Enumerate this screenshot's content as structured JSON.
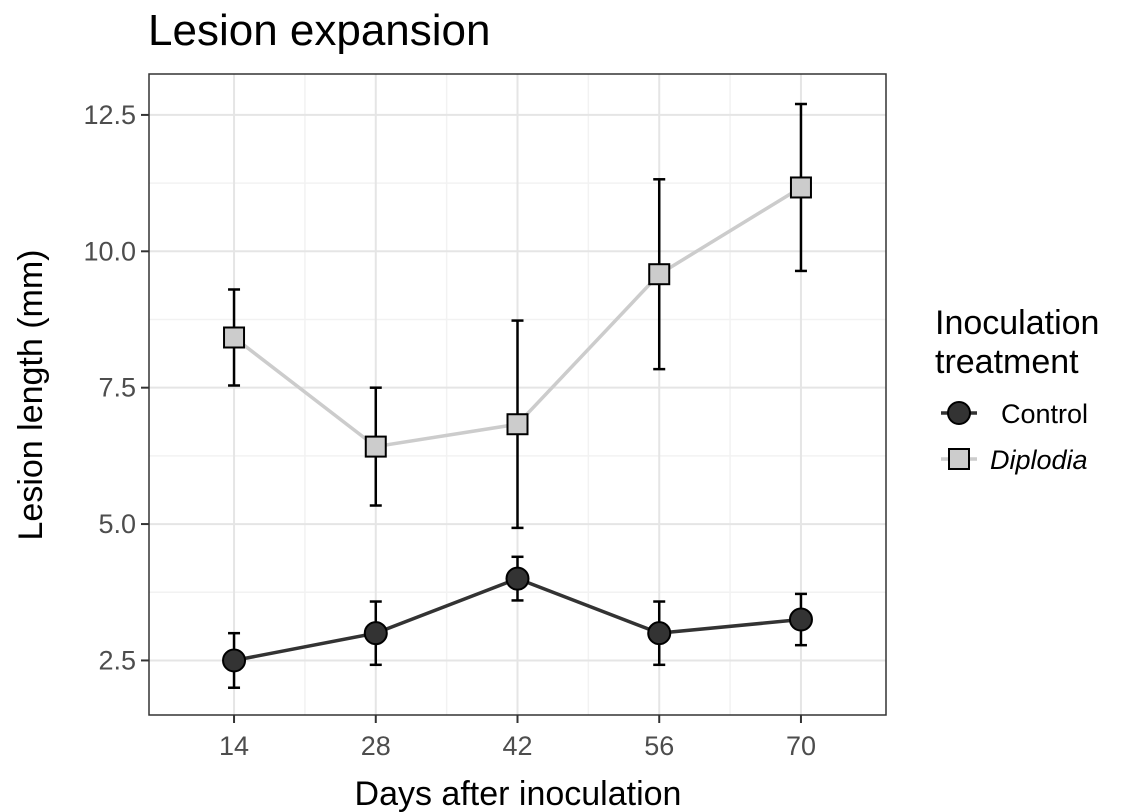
{
  "chart_data": {
    "type": "line",
    "title": "Lesion expansion",
    "xlabel": "Days after inoculation",
    "ylabel": "Lesion length (mm)",
    "x": [
      14,
      28,
      42,
      56,
      70
    ],
    "x_tick_labels": [
      "14",
      "28",
      "42",
      "56",
      "70"
    ],
    "y_ticks": [
      2.5,
      5.0,
      7.5,
      10.0,
      12.5
    ],
    "y_tick_labels": [
      "2.5",
      "5.0",
      "7.5",
      "10.0",
      "12.5"
    ],
    "ylim": [
      1.5,
      13.25
    ],
    "xlim": [
      5.6,
      78.4
    ],
    "grid": true,
    "legend": {
      "title_lines": [
        "Inoculation",
        "treatment"
      ],
      "position": "right"
    },
    "series": [
      {
        "name": "Control",
        "marker": "circle",
        "color": "#333333",
        "line_color": "#333333",
        "italic": false,
        "values": [
          2.5,
          3.0,
          4.0,
          3.0,
          3.25
        ],
        "error_low": [
          2.0,
          2.42,
          3.6,
          2.42,
          2.78
        ],
        "error_high": [
          3.0,
          3.58,
          4.4,
          3.58,
          3.72
        ]
      },
      {
        "name": "Diplodia",
        "marker": "square",
        "color": "#cccccc",
        "line_color": "#cccccc",
        "italic": true,
        "values": [
          8.42,
          6.42,
          6.83,
          9.58,
          11.17
        ],
        "error_low": [
          7.54,
          5.34,
          4.93,
          7.84,
          9.64
        ],
        "error_high": [
          9.3,
          7.5,
          8.73,
          11.32,
          12.7
        ]
      }
    ]
  }
}
